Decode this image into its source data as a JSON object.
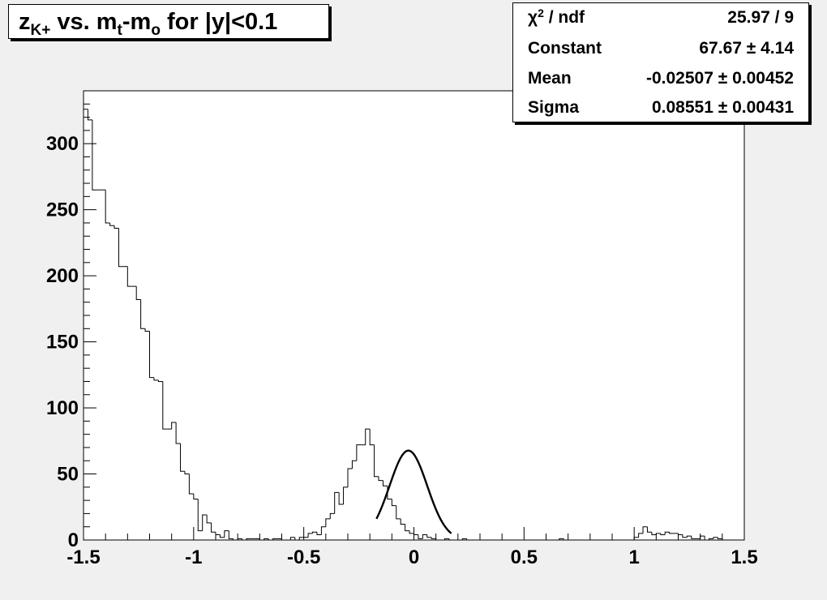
{
  "title": {
    "prefix": "z",
    "prefix_sub": "K+",
    "mid": " vs. m",
    "mid_sub": "t",
    "dash": "-m",
    "dash_sub": "o",
    "suffix": " for |y|<0.1"
  },
  "stats": {
    "chi_symbol": "χ",
    "chi_sup": "2",
    "chi_rest": " / ndf",
    "chi_value": "25.97 / 9",
    "constant_label": "Constant",
    "constant_value": "67.67 ± 4.14",
    "mean_label": "Mean",
    "mean_value": "-0.02507 ± 0.00452",
    "sigma_label": "Sigma",
    "sigma_value": "0.08551 ± 0.00431"
  },
  "colors": {
    "background": "#f0f0f0",
    "plot_area": "#ffffff",
    "histogram": "#000000",
    "fit_curve": "#000000"
  },
  "chart_data": {
    "type": "histogram",
    "title": "zK+ vs. mt-mo for |y|<0.1",
    "xlim": [
      -1.5,
      1.5
    ],
    "ylim": [
      0,
      340
    ],
    "bin_width": 0.02,
    "xticks": [
      "-1.5",
      "-1",
      "-0.5",
      "0",
      "0.5",
      "1",
      "1.5"
    ],
    "xtick_values": [
      -1.5,
      -1,
      -0.5,
      0,
      0.5,
      1,
      1.5
    ],
    "yticks": [
      "0",
      "50",
      "100",
      "150",
      "200",
      "250",
      "300"
    ],
    "ytick_values": [
      0,
      50,
      100,
      150,
      200,
      250,
      300
    ],
    "bins": [
      [
        -1.5,
        326
      ],
      [
        -1.48,
        318
      ],
      [
        -1.46,
        265
      ],
      [
        -1.44,
        265
      ],
      [
        -1.42,
        265
      ],
      [
        -1.4,
        240
      ],
      [
        -1.38,
        238
      ],
      [
        -1.36,
        236
      ],
      [
        -1.34,
        207
      ],
      [
        -1.32,
        207
      ],
      [
        -1.3,
        192
      ],
      [
        -1.28,
        192
      ],
      [
        -1.26,
        182
      ],
      [
        -1.24,
        160
      ],
      [
        -1.22,
        158
      ],
      [
        -1.2,
        123
      ],
      [
        -1.18,
        121
      ],
      [
        -1.16,
        120
      ],
      [
        -1.14,
        84
      ],
      [
        -1.12,
        84
      ],
      [
        -1.1,
        89
      ],
      [
        -1.08,
        73
      ],
      [
        -1.06,
        52
      ],
      [
        -1.04,
        50
      ],
      [
        -1.02,
        35
      ],
      [
        -1.0,
        31
      ],
      [
        -0.98,
        7
      ],
      [
        -0.96,
        19
      ],
      [
        -0.94,
        13
      ],
      [
        -0.92,
        6
      ],
      [
        -0.9,
        4
      ],
      [
        -0.88,
        2
      ],
      [
        -0.86,
        7
      ],
      [
        -0.84,
        1
      ],
      [
        -0.82,
        0
      ],
      [
        -0.8,
        1
      ],
      [
        -0.78,
        0
      ],
      [
        -0.76,
        1
      ],
      [
        -0.74,
        1
      ],
      [
        -0.72,
        1
      ],
      [
        -0.7,
        0
      ],
      [
        -0.68,
        1
      ],
      [
        -0.66,
        0
      ],
      [
        -0.64,
        1
      ],
      [
        -0.62,
        1
      ],
      [
        -0.6,
        0
      ],
      [
        -0.58,
        0
      ],
      [
        -0.56,
        2
      ],
      [
        -0.54,
        0
      ],
      [
        -0.52,
        2
      ],
      [
        -0.5,
        2
      ],
      [
        -0.48,
        5
      ],
      [
        -0.46,
        6
      ],
      [
        -0.44,
        4
      ],
      [
        -0.42,
        10
      ],
      [
        -0.4,
        16
      ],
      [
        -0.38,
        20
      ],
      [
        -0.36,
        36
      ],
      [
        -0.34,
        27
      ],
      [
        -0.32,
        40
      ],
      [
        -0.3,
        54
      ],
      [
        -0.28,
        60
      ],
      [
        -0.26,
        72
      ],
      [
        -0.24,
        72
      ],
      [
        -0.22,
        84
      ],
      [
        -0.2,
        72
      ],
      [
        -0.18,
        48
      ],
      [
        -0.16,
        45
      ],
      [
        -0.14,
        41
      ],
      [
        -0.12,
        31
      ],
      [
        -0.1,
        26
      ],
      [
        -0.08,
        16
      ],
      [
        -0.06,
        12
      ],
      [
        -0.04,
        7
      ],
      [
        -0.02,
        5
      ],
      [
        0.0,
        4
      ],
      [
        0.02,
        1
      ],
      [
        0.04,
        4
      ],
      [
        0.06,
        2
      ],
      [
        0.08,
        1
      ],
      [
        0.1,
        0
      ],
      [
        0.12,
        0
      ],
      [
        0.14,
        1
      ],
      [
        0.16,
        0
      ],
      [
        0.18,
        0
      ],
      [
        0.2,
        0
      ],
      [
        0.22,
        1
      ],
      [
        0.24,
        0
      ],
      [
        0.26,
        0
      ],
      [
        0.28,
        0
      ],
      [
        0.3,
        0
      ],
      [
        0.32,
        0
      ],
      [
        0.34,
        0
      ],
      [
        0.36,
        0
      ],
      [
        0.38,
        0
      ],
      [
        0.4,
        0
      ],
      [
        0.42,
        0
      ],
      [
        0.44,
        0
      ],
      [
        0.46,
        0
      ],
      [
        0.48,
        0
      ],
      [
        0.5,
        0
      ],
      [
        0.52,
        0
      ],
      [
        0.54,
        0
      ],
      [
        0.56,
        0
      ],
      [
        0.58,
        0
      ],
      [
        0.6,
        0
      ],
      [
        0.62,
        0
      ],
      [
        0.64,
        0
      ],
      [
        0.66,
        1
      ],
      [
        0.68,
        0
      ],
      [
        0.7,
        0
      ],
      [
        0.72,
        0
      ],
      [
        0.74,
        0
      ],
      [
        0.76,
        0
      ],
      [
        0.78,
        0
      ],
      [
        0.8,
        0
      ],
      [
        0.82,
        0
      ],
      [
        0.84,
        0
      ],
      [
        0.86,
        0
      ],
      [
        0.88,
        0
      ],
      [
        0.9,
        0
      ],
      [
        0.92,
        0
      ],
      [
        0.94,
        0
      ],
      [
        0.96,
        0
      ],
      [
        0.98,
        0
      ],
      [
        1.0,
        2
      ],
      [
        1.02,
        5
      ],
      [
        1.04,
        10
      ],
      [
        1.06,
        6
      ],
      [
        1.08,
        4
      ],
      [
        1.1,
        5
      ],
      [
        1.12,
        4
      ],
      [
        1.14,
        6
      ],
      [
        1.16,
        5
      ],
      [
        1.18,
        5
      ],
      [
        1.2,
        4
      ],
      [
        1.22,
        2
      ],
      [
        1.24,
        3
      ],
      [
        1.26,
        1
      ],
      [
        1.28,
        1
      ],
      [
        1.3,
        3
      ],
      [
        1.32,
        0
      ],
      [
        1.34,
        1
      ],
      [
        1.36,
        2
      ],
      [
        1.38,
        1
      ],
      [
        1.4,
        0
      ],
      [
        1.42,
        0
      ],
      [
        1.44,
        0
      ],
      [
        1.46,
        0
      ],
      [
        1.48,
        0
      ]
    ],
    "fit": {
      "function": "gaus",
      "constant": 67.67,
      "mean": -0.02507,
      "sigma": 0.08551,
      "range": [
        -0.17,
        0.17
      ]
    }
  }
}
